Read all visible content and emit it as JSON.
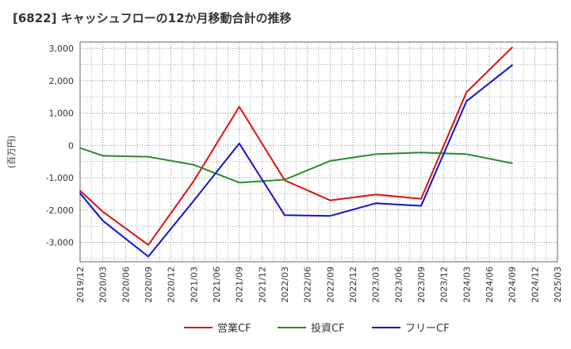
{
  "chart_data": {
    "type": "line",
    "title": "[6822]  キャッシュフローの12か月移動合計の推移",
    "ylabel": "(百万円)",
    "xlabel": "",
    "ylim": [
      -3600,
      3200
    ],
    "yticks": [
      3000,
      2000,
      1000,
      0,
      -1000,
      -2000,
      -3000
    ],
    "ytick_labels": [
      "3,000",
      "2,000",
      "1,000",
      "0",
      "-1,000",
      "-2,000",
      "-3,000"
    ],
    "categories": [
      "2019/12",
      "2020/03",
      "2020/06",
      "2020/09",
      "2020/12",
      "2021/03",
      "2021/06",
      "2021/09",
      "2021/12",
      "2022/03",
      "2022/06",
      "2022/09",
      "2022/12",
      "2023/03",
      "2023/06",
      "2023/09",
      "2023/12",
      "2024/03",
      "2024/06",
      "2024/09",
      "2024/12",
      "2025/03"
    ],
    "grid": true,
    "legend_position": "bottom",
    "series": [
      {
        "name": "営業CF",
        "color": "#dd1111",
        "values": [
          -1400,
          -2050,
          null,
          -3080,
          null,
          -1100,
          null,
          1200,
          null,
          -1080,
          null,
          -1700,
          null,
          -1520,
          null,
          -1650,
          null,
          1650,
          null,
          3030,
          null,
          null
        ]
      },
      {
        "name": "投資CF",
        "color": "#2a8a2a",
        "values": [
          -80,
          -320,
          null,
          -350,
          null,
          -600,
          null,
          -1150,
          null,
          -1060,
          null,
          -480,
          null,
          -270,
          null,
          -220,
          null,
          -270,
          null,
          -550,
          null,
          null
        ]
      },
      {
        "name": "フリーCF",
        "color": "#1111cc",
        "values": [
          -1480,
          -2330,
          null,
          -3440,
          null,
          -1710,
          null,
          60,
          null,
          -2160,
          null,
          -2180,
          null,
          -1790,
          null,
          -1870,
          null,
          1370,
          null,
          2480,
          null,
          null
        ]
      }
    ]
  }
}
